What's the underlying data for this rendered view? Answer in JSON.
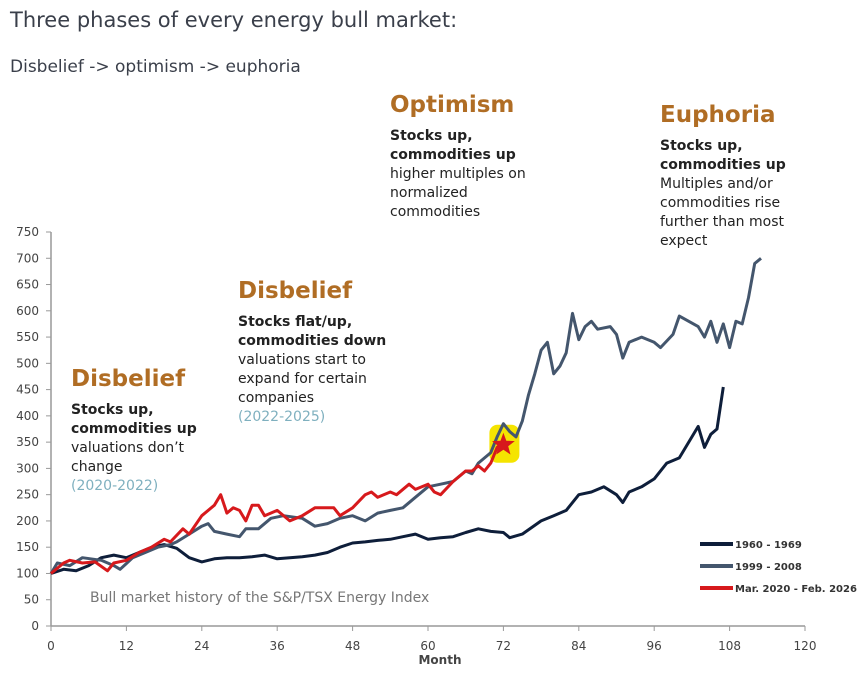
{
  "header": {
    "title": "Three phases of every energy bull market:",
    "subtitle": "Disbelief -> optimism -> euphoria"
  },
  "annotations": [
    {
      "heading": "Disbelief",
      "bold": [
        "Stocks up,",
        "commodities up"
      ],
      "desc": [
        "valuations don’t",
        "change"
      ],
      "years": "(2020-2022)"
    },
    {
      "heading": "Disbelief",
      "bold": [
        "Stocks flat/up,",
        "commodities down"
      ],
      "desc": [
        "valuations start to",
        "expand for certain",
        "companies"
      ],
      "years": "(2022-2025)"
    },
    {
      "heading": "Optimism",
      "bold": [
        "Stocks up,",
        "commodities up"
      ],
      "desc": [
        "higher multiples on",
        "normalized",
        "commodities"
      ],
      "years": ""
    },
    {
      "heading": "Euphoria",
      "bold": [
        "Stocks up,",
        "commodities up"
      ],
      "desc": [
        "Multiples and/or",
        "commodities rise",
        "further than most",
        "expect"
      ],
      "years": ""
    }
  ],
  "chart_data": {
    "type": "line",
    "title": "Bull market history of the S&P/TSX Energy Index",
    "xlabel": "Month",
    "ylabel": "",
    "xlim": [
      0,
      120
    ],
    "ylim": [
      0,
      750
    ],
    "xticks": [
      0,
      12,
      24,
      36,
      48,
      60,
      72,
      84,
      96,
      108,
      120
    ],
    "yticks": [
      0,
      50,
      100,
      150,
      200,
      250,
      300,
      350,
      400,
      450,
      500,
      550,
      600,
      650,
      700,
      750
    ],
    "legend_position": "bottom-right",
    "marker": {
      "label": "current position",
      "x": 72,
      "y": 345,
      "highlight": "#f5e400",
      "color": "#d7191c"
    },
    "series": [
      {
        "name": "1960 - 1969",
        "color": "#0e1e3a",
        "x": [
          0,
          2,
          4,
          6,
          8,
          10,
          12,
          14,
          16,
          18,
          20,
          22,
          24,
          26,
          28,
          30,
          32,
          34,
          36,
          38,
          40,
          42,
          44,
          46,
          48,
          50,
          52,
          54,
          56,
          58,
          60,
          62,
          64,
          66,
          68,
          70,
          72,
          73,
          75,
          78,
          80,
          82,
          84,
          86,
          88,
          90,
          91,
          92,
          94,
          96,
          98,
          100,
          102,
          103,
          104,
          105,
          106,
          107
        ],
        "y": [
          100,
          108,
          105,
          115,
          130,
          135,
          130,
          140,
          150,
          155,
          148,
          130,
          122,
          128,
          130,
          130,
          132,
          135,
          128,
          130,
          132,
          135,
          140,
          150,
          158,
          160,
          163,
          165,
          170,
          175,
          165,
          168,
          170,
          178,
          185,
          180,
          178,
          168,
          175,
          200,
          210,
          220,
          250,
          255,
          265,
          250,
          235,
          255,
          265,
          280,
          310,
          320,
          360,
          380,
          340,
          365,
          375,
          455
        ]
      },
      {
        "name": "1999 - 2008",
        "color": "#44566d",
        "x": [
          0,
          1,
          3,
          5,
          8,
          10,
          11,
          13,
          15,
          17,
          19,
          20,
          22,
          24,
          25,
          26,
          28,
          30,
          31,
          33,
          35,
          37,
          40,
          42,
          44,
          46,
          48,
          50,
          52,
          54,
          56,
          58,
          60,
          62,
          64,
          66,
          67,
          68,
          70,
          71,
          72,
          73,
          74,
          75,
          76,
          77,
          78,
          79,
          80,
          81,
          82,
          83,
          84,
          85,
          86,
          87,
          89,
          90,
          91,
          92,
          94,
          96,
          97,
          99,
          100,
          103,
          104,
          105,
          106,
          107,
          108,
          109,
          110,
          111,
          112,
          113
        ],
        "y": [
          100,
          120,
          115,
          130,
          125,
          115,
          108,
          130,
          140,
          150,
          155,
          160,
          175,
          190,
          195,
          180,
          175,
          170,
          185,
          185,
          205,
          210,
          205,
          190,
          195,
          205,
          210,
          200,
          215,
          220,
          225,
          245,
          265,
          270,
          275,
          295,
          290,
          310,
          330,
          360,
          385,
          370,
          360,
          390,
          440,
          480,
          525,
          540,
          480,
          495,
          520,
          595,
          545,
          570,
          580,
          565,
          570,
          555,
          510,
          540,
          550,
          540,
          530,
          555,
          590,
          570,
          550,
          580,
          540,
          575,
          530,
          580,
          575,
          625,
          690,
          700
        ]
      },
      {
        "name": "Mar. 2020 - Feb. 2026",
        "color": "#d7191c",
        "x": [
          0,
          2,
          3,
          5,
          7,
          9,
          10,
          12,
          14,
          16,
          18,
          19,
          21,
          22,
          24,
          26,
          27,
          28,
          29,
          30,
          31,
          32,
          33,
          34,
          36,
          38,
          40,
          42,
          44,
          45,
          46,
          48,
          50,
          51,
          52,
          54,
          55,
          57,
          58,
          60,
          61,
          62,
          64,
          66,
          67,
          68,
          69,
          70,
          71,
          72
        ],
        "y": [
          100,
          120,
          125,
          120,
          122,
          105,
          120,
          125,
          140,
          150,
          165,
          160,
          185,
          175,
          210,
          230,
          250,
          215,
          225,
          220,
          200,
          230,
          230,
          210,
          220,
          200,
          210,
          225,
          225,
          225,
          210,
          225,
          250,
          255,
          245,
          255,
          250,
          270,
          260,
          270,
          255,
          250,
          275,
          295,
          295,
          305,
          295,
          310,
          340,
          350
        ]
      }
    ]
  }
}
